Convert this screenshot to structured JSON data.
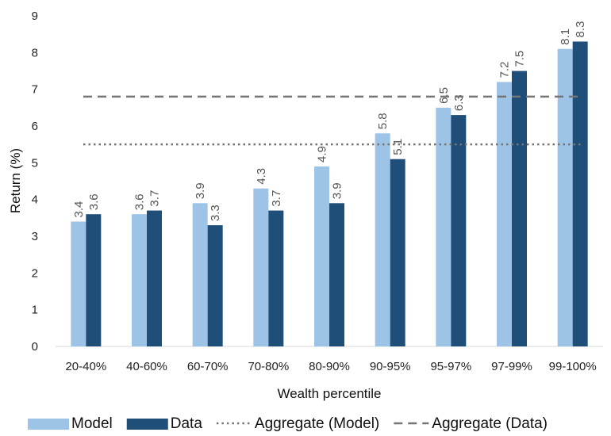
{
  "chart_data": {
    "type": "bar",
    "title": "",
    "xlabel": "Wealth percentile",
    "ylabel": "Return (%)",
    "ylim": [
      0,
      9
    ],
    "yticks": [
      "0",
      "1",
      "2",
      "3",
      "4",
      "5",
      "6",
      "7",
      "8",
      "9"
    ],
    "grid": false,
    "legend_position": "bottom",
    "categories": [
      "20-40%",
      "40-60%",
      "60-70%",
      "70-80%",
      "80-90%",
      "90-95%",
      "95-97%",
      "97-99%",
      "99-100%"
    ],
    "series": [
      {
        "name": "Model",
        "color": "#9dc3e6",
        "values": [
          3.4,
          3.6,
          3.9,
          4.3,
          4.9,
          5.8,
          6.5,
          7.2,
          8.1
        ],
        "labels": [
          "3.4",
          "3.6",
          "3.9",
          "4.3",
          "4.9",
          "5.8",
          "6.5",
          "7.2",
          "8.1"
        ]
      },
      {
        "name": "Data",
        "color": "#1f4e79",
        "values": [
          3.6,
          3.7,
          3.3,
          3.7,
          3.9,
          5.1,
          6.3,
          7.5,
          8.3
        ],
        "labels": [
          "3.6",
          "3.7",
          "3.3",
          "3.7",
          "3.9",
          "5.1",
          "6.3",
          "7.5",
          "8.3"
        ]
      }
    ],
    "reference_lines": [
      {
        "name": "Aggregate (Model)",
        "value": 5.5,
        "style": "dotted",
        "color": "#767676"
      },
      {
        "name": "Aggregate (Data)",
        "value": 6.8,
        "style": "dashed",
        "color": "#767676"
      }
    ]
  }
}
